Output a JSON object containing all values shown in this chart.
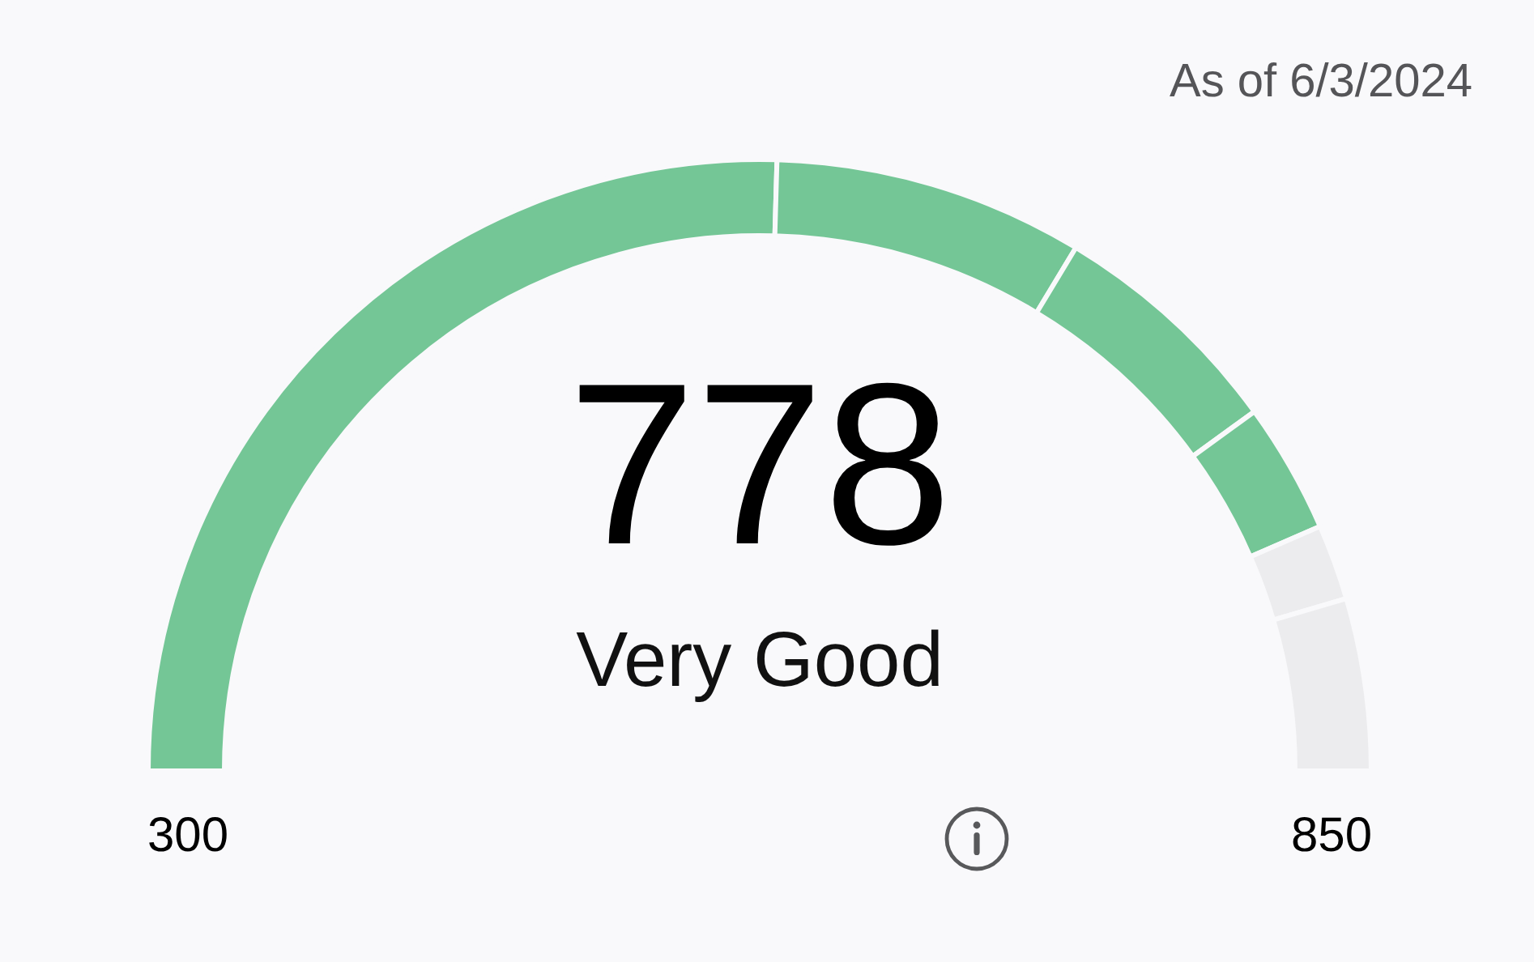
{
  "chart_data": {
    "type": "donut",
    "subtitle": "As of 6/3/2024",
    "categories": [
      null,
      null,
      null,
      null,
      null,
      null
    ],
    "values": [
      50.9,
      16.4,
      12.7,
      6.9,
      4.0,
      9.1
    ],
    "colors": [
      "#74c696",
      "#74c696",
      "#74c696",
      "#74c696",
      "#ececee",
      "#ececee"
    ],
    "annotations": [
      "778",
      "Very Good",
      "300",
      "850"
    ]
  }
}
